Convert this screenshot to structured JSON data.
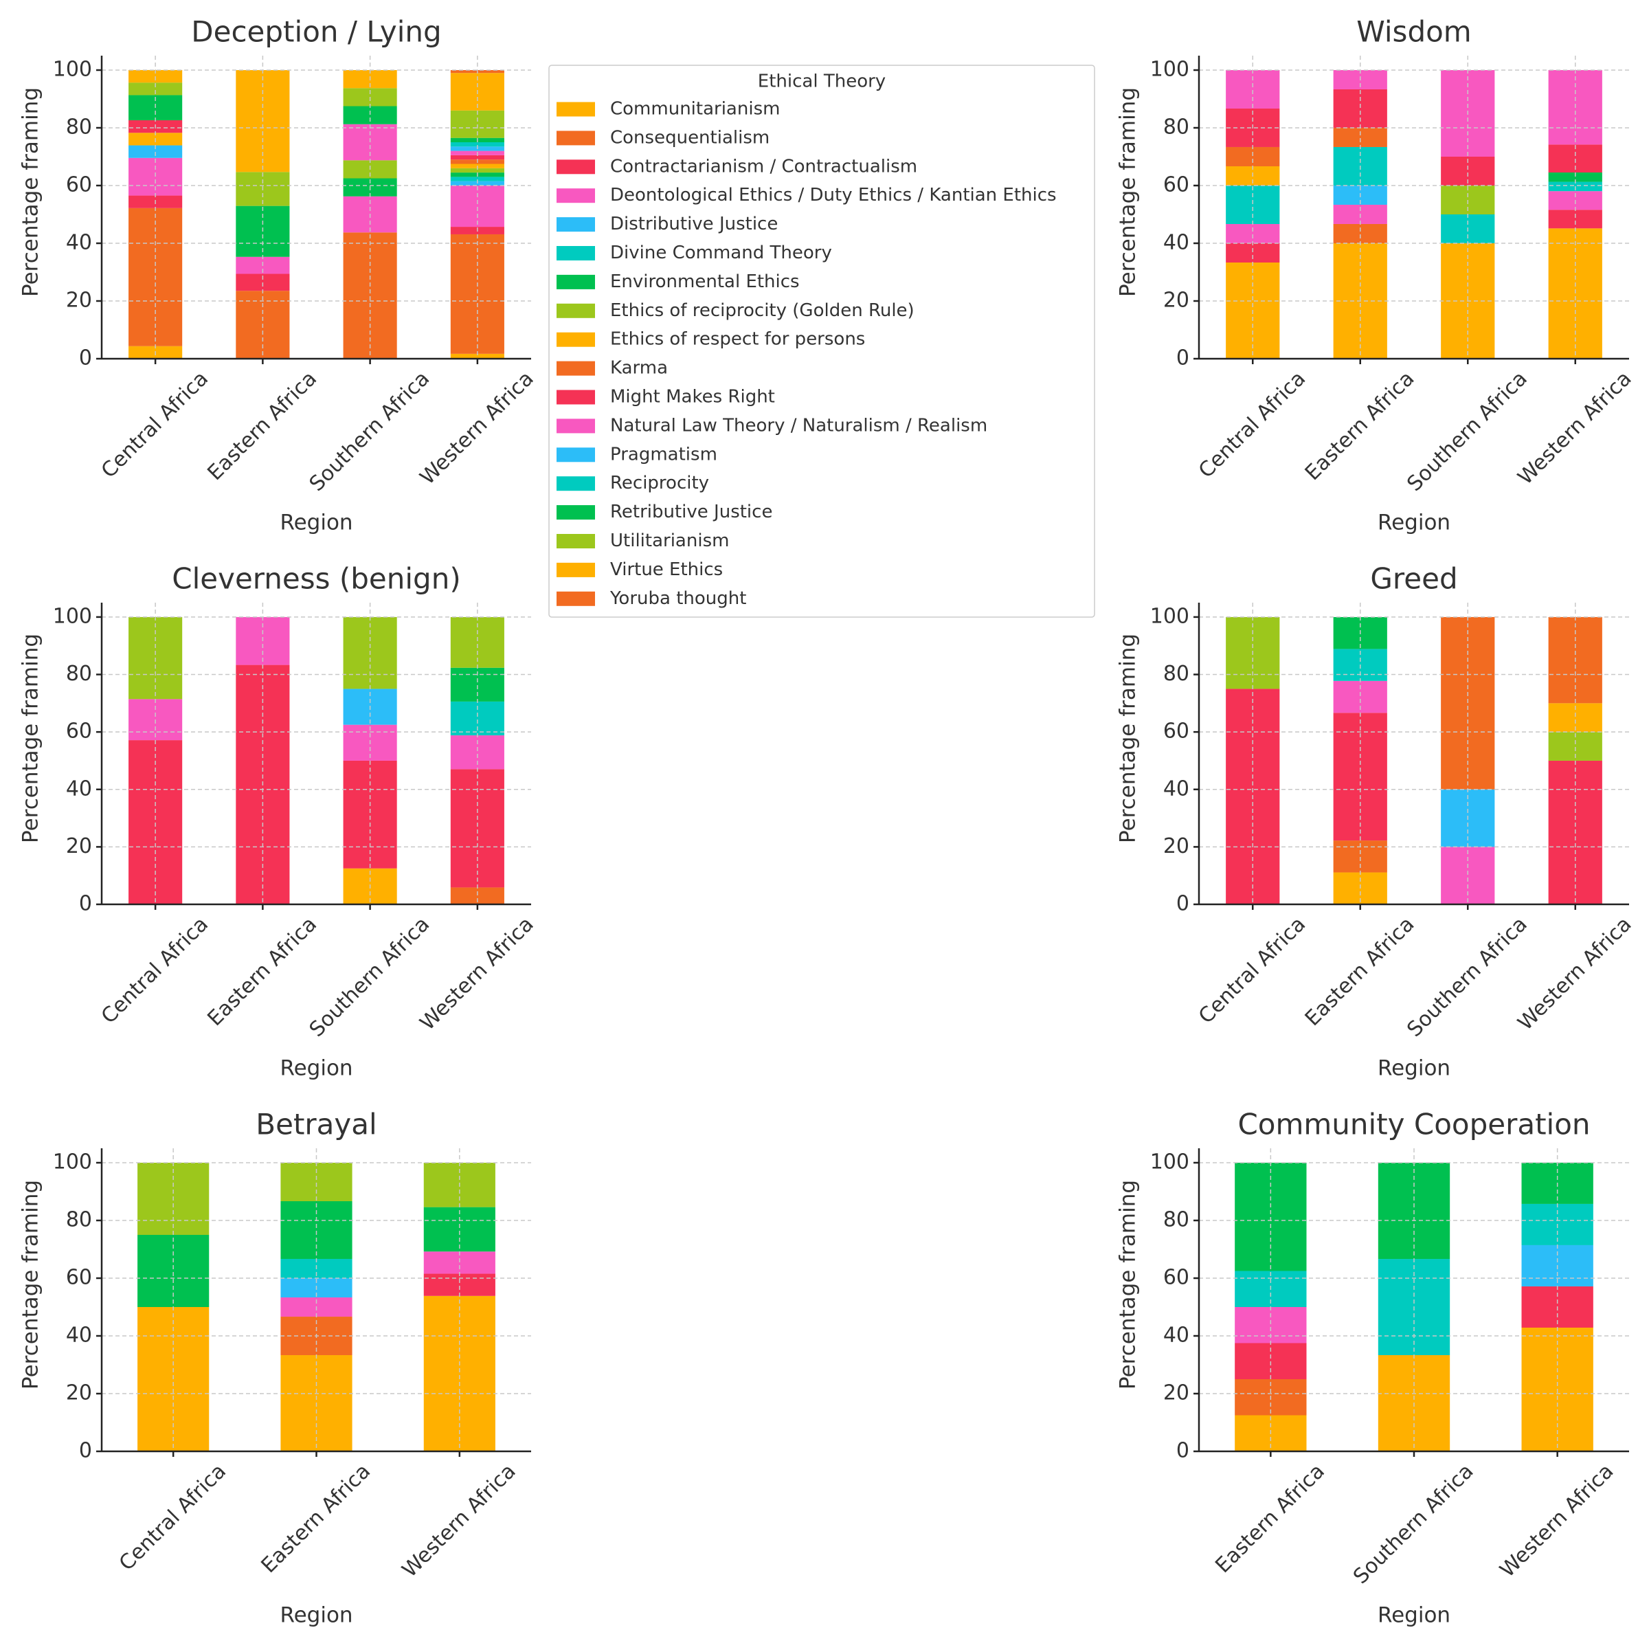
{
  "legend": {
    "title": "Ethical Theory",
    "position": "upper-center",
    "entries": [
      {
        "name": "Communitarianism",
        "color": "#FFB000"
      },
      {
        "name": "Consequentialism",
        "color": "#F26B21"
      },
      {
        "name": "Contractarianism / Contractualism",
        "color": "#F53255"
      },
      {
        "name": "Deontological Ethics / Duty Ethics / Kantian Ethics",
        "color": "#F858C0"
      },
      {
        "name": "Distributive Justice",
        "color": "#2CBDF8"
      },
      {
        "name": "Divine Command Theory",
        "color": "#00CBBF"
      },
      {
        "name": "Environmental Ethics",
        "color": "#00C050"
      },
      {
        "name": "Ethics of reciprocity (Golden Rule)",
        "color": "#9CC71C"
      },
      {
        "name": "Ethics of respect for persons",
        "color": "#FFB000"
      },
      {
        "name": "Karma",
        "color": "#F26B21"
      },
      {
        "name": "Might Makes Right",
        "color": "#F53255"
      },
      {
        "name": "Natural Law Theory / Naturalism / Realism",
        "color": "#F858C0"
      },
      {
        "name": "Pragmatism",
        "color": "#2CBDF8"
      },
      {
        "name": "Reciprocity",
        "color": "#00CBBF"
      },
      {
        "name": "Retributive Justice",
        "color": "#00C050"
      },
      {
        "name": "Utilitarianism",
        "color": "#9CC71C"
      },
      {
        "name": "Virtue Ethics",
        "color": "#FFB000"
      },
      {
        "name": "Yoruba thought",
        "color": "#F26B21"
      }
    ]
  },
  "chart_data": [
    {
      "type": "bar",
      "stacked": true,
      "grid": true,
      "title": "Deception / Lying",
      "x_label": "Region",
      "y_label": "Percentage framing",
      "categories": [
        "Central Africa",
        "Eastern Africa",
        "Southern Africa",
        "Western Africa"
      ],
      "ylim": [
        0,
        105
      ],
      "yticks": [
        0,
        20,
        40,
        60,
        80,
        100
      ],
      "series": [
        {
          "values": [
            4.35,
            0,
            0,
            1.7
          ]
        },
        {
          "values": [
            47.83,
            23.53,
            43.75,
            41.4
          ]
        },
        {
          "values": [
            4.35,
            5.88,
            0,
            2.6
          ]
        },
        {
          "values": [
            13.04,
            5.88,
            12.5,
            14.3
          ]
        },
        {
          "values": [
            4.35,
            0,
            0,
            1.5
          ]
        },
        {
          "values": [
            0,
            0,
            0,
            1.5
          ]
        },
        {
          "values": [
            0,
            17.65,
            6.25,
            1.5
          ]
        },
        {
          "values": [
            0,
            11.76,
            6.25,
            1.5
          ]
        },
        {
          "values": [
            4.35,
            35.29,
            0,
            1.5
          ]
        },
        {
          "values": [
            0,
            0,
            0,
            1.5
          ]
        },
        {
          "values": [
            4.35,
            0,
            0,
            1.5
          ]
        },
        {
          "values": [
            0,
            0,
            12.5,
            1.5
          ]
        },
        {
          "values": [
            0,
            0,
            0,
            1.5
          ]
        },
        {
          "values": [
            0,
            0,
            0,
            1.5
          ]
        },
        {
          "values": [
            8.7,
            0,
            6.25,
            1.5
          ]
        },
        {
          "values": [
            4.35,
            0,
            6.25,
            9.5
          ]
        },
        {
          "values": [
            4.35,
            0,
            6.25,
            13
          ]
        },
        {
          "values": [
            0,
            0,
            0,
            1
          ]
        }
      ]
    },
    {
      "type": "bar",
      "stacked": true,
      "grid": true,
      "title": "Wisdom",
      "x_label": "Region",
      "y_label": "Percentage framing",
      "categories": [
        "Central Africa",
        "Eastern Africa",
        "Southern Africa",
        "Western Africa"
      ],
      "ylim": [
        0,
        105
      ],
      "yticks": [
        0,
        20,
        40,
        60,
        80,
        100
      ],
      "series": [
        {
          "values": [
            33.33,
            40,
            40,
            45.16
          ]
        },
        {
          "values": [
            0,
            6.67,
            0,
            0
          ]
        },
        {
          "values": [
            6.67,
            0,
            0,
            6.45
          ]
        },
        {
          "values": [
            6.67,
            6.67,
            0,
            6.45
          ]
        },
        {
          "values": [
            0,
            6.67,
            0,
            0
          ]
        },
        {
          "values": [
            13.33,
            13.33,
            10,
            3.23
          ]
        },
        {
          "values": [
            0,
            0,
            0,
            3.23
          ]
        },
        {
          "values": [
            0,
            0,
            10,
            0
          ]
        },
        {
          "values": [
            6.67,
            0,
            0,
            0
          ]
        },
        {
          "values": [
            6.67,
            6.67,
            0,
            0
          ]
        },
        {
          "values": [
            13.33,
            13.33,
            10,
            9.68
          ]
        },
        {
          "values": [
            13.33,
            6.67,
            30,
            25.81
          ]
        },
        {
          "values": [
            0,
            0,
            0,
            0
          ]
        },
        {
          "values": [
            0,
            0,
            0,
            0
          ]
        },
        {
          "values": [
            0,
            0,
            0,
            0
          ]
        },
        {
          "values": [
            0,
            0,
            0,
            0
          ]
        },
        {
          "values": [
            0,
            0,
            0,
            0
          ]
        },
        {
          "values": [
            0,
            0,
            0,
            0
          ]
        }
      ]
    },
    {
      "type": "bar",
      "stacked": true,
      "grid": true,
      "title": "Cleverness (benign)",
      "x_label": "Region",
      "y_label": "Percentage framing",
      "categories": [
        "Central Africa",
        "Eastern Africa",
        "Southern Africa",
        "Western Africa"
      ],
      "ylim": [
        0,
        105
      ],
      "yticks": [
        0,
        20,
        40,
        60,
        80,
        100
      ],
      "series": [
        {
          "values": [
            0,
            0,
            12.5,
            0
          ]
        },
        {
          "values": [
            0,
            0,
            0,
            5.88
          ]
        },
        {
          "values": [
            57.14,
            83.33,
            37.5,
            41.18
          ]
        },
        {
          "values": [
            14.29,
            16.67,
            12.5,
            11.76
          ]
        },
        {
          "values": [
            0,
            0,
            12.5,
            0
          ]
        },
        {
          "values": [
            0,
            0,
            0,
            11.76
          ]
        },
        {
          "values": [
            0,
            0,
            0,
            11.76
          ]
        },
        {
          "values": [
            28.57,
            0,
            25,
            17.65
          ]
        },
        {
          "values": [
            0,
            0,
            0,
            0
          ]
        },
        {
          "values": [
            0,
            0,
            0,
            0
          ]
        },
        {
          "values": [
            0,
            0,
            0,
            0
          ]
        },
        {
          "values": [
            0,
            0,
            0,
            0
          ]
        },
        {
          "values": [
            0,
            0,
            0,
            0
          ]
        },
        {
          "values": [
            0,
            0,
            0,
            0
          ]
        },
        {
          "values": [
            0,
            0,
            0,
            0
          ]
        },
        {
          "values": [
            0,
            0,
            0,
            0
          ]
        },
        {
          "values": [
            0,
            0,
            0,
            0
          ]
        },
        {
          "values": [
            0,
            0,
            0,
            0
          ]
        }
      ]
    },
    {
      "type": "bar",
      "stacked": true,
      "grid": true,
      "title": "Greed",
      "x_label": "Region",
      "y_label": "Percentage framing",
      "categories": [
        "Central Africa",
        "Eastern Africa",
        "Southern Africa",
        "Western Africa"
      ],
      "ylim": [
        0,
        105
      ],
      "yticks": [
        0,
        20,
        40,
        60,
        80,
        100
      ],
      "series": [
        {
          "values": [
            0,
            11.11,
            0,
            0
          ]
        },
        {
          "values": [
            0,
            11.11,
            0,
            0
          ]
        },
        {
          "values": [
            75,
            44.44,
            0,
            50
          ]
        },
        {
          "values": [
            0,
            11.11,
            20,
            0
          ]
        },
        {
          "values": [
            0,
            0,
            20,
            0
          ]
        },
        {
          "values": [
            0,
            11.11,
            0,
            0
          ]
        },
        {
          "values": [
            0,
            11.11,
            0,
            0
          ]
        },
        {
          "values": [
            25,
            0,
            0,
            10
          ]
        },
        {
          "values": [
            0,
            0,
            0,
            10
          ]
        },
        {
          "values": [
            0,
            0,
            60,
            30
          ]
        },
        {
          "values": [
            0,
            0,
            0,
            0
          ]
        },
        {
          "values": [
            0,
            0,
            0,
            0
          ]
        },
        {
          "values": [
            0,
            0,
            0,
            0
          ]
        },
        {
          "values": [
            0,
            0,
            0,
            0
          ]
        },
        {
          "values": [
            0,
            0,
            0,
            0
          ]
        },
        {
          "values": [
            0,
            0,
            0,
            0
          ]
        },
        {
          "values": [
            0,
            0,
            0,
            0
          ]
        },
        {
          "values": [
            0,
            0,
            0,
            0
          ]
        }
      ]
    },
    {
      "type": "bar",
      "stacked": true,
      "grid": true,
      "title": "Betrayal",
      "x_label": "Region",
      "y_label": "Percentage framing",
      "categories": [
        "Central Africa",
        "Eastern Africa",
        "Western Africa"
      ],
      "ylim": [
        0,
        105
      ],
      "yticks": [
        0,
        20,
        40,
        60,
        80,
        100
      ],
      "series": [
        {
          "values": [
            50,
            33.33,
            53.85
          ]
        },
        {
          "values": [
            0,
            13.33,
            0
          ]
        },
        {
          "values": [
            0,
            0,
            7.69
          ]
        },
        {
          "values": [
            0,
            6.67,
            7.69
          ]
        },
        {
          "values": [
            0,
            6.67,
            0
          ]
        },
        {
          "values": [
            0,
            6.67,
            0
          ]
        },
        {
          "values": [
            25,
            20,
            15.38
          ]
        },
        {
          "values": [
            25,
            13.33,
            15.38
          ]
        },
        {
          "values": [
            0,
            0,
            0
          ]
        },
        {
          "values": [
            0,
            0,
            0
          ]
        },
        {
          "values": [
            0,
            0,
            0
          ]
        },
        {
          "values": [
            0,
            0,
            0
          ]
        },
        {
          "values": [
            0,
            0,
            0
          ]
        },
        {
          "values": [
            0,
            0,
            0
          ]
        },
        {
          "values": [
            0,
            0,
            0
          ]
        },
        {
          "values": [
            0,
            0,
            0
          ]
        },
        {
          "values": [
            0,
            0,
            0
          ]
        },
        {
          "values": [
            0,
            0,
            0
          ]
        }
      ]
    },
    {
      "type": "bar",
      "stacked": true,
      "grid": true,
      "title": "Community Cooperation",
      "x_label": "Region",
      "y_label": "Percentage framing",
      "categories": [
        "Eastern Africa",
        "Southern Africa",
        "Western Africa"
      ],
      "ylim": [
        0,
        105
      ],
      "yticks": [
        0,
        20,
        40,
        60,
        80,
        100
      ],
      "series": [
        {
          "values": [
            12.5,
            33.33,
            42.86
          ]
        },
        {
          "values": [
            12.5,
            0,
            0
          ]
        },
        {
          "values": [
            12.5,
            0,
            14.29
          ]
        },
        {
          "values": [
            12.5,
            0,
            0
          ]
        },
        {
          "values": [
            0,
            0,
            14.29
          ]
        },
        {
          "values": [
            12.5,
            33.33,
            14.29
          ]
        },
        {
          "values": [
            37.5,
            33.33,
            14.29
          ]
        },
        {
          "values": [
            0,
            0,
            0
          ]
        },
        {
          "values": [
            0,
            0,
            0
          ]
        },
        {
          "values": [
            0,
            0,
            0
          ]
        },
        {
          "values": [
            0,
            0,
            0
          ]
        },
        {
          "values": [
            0,
            0,
            0
          ]
        },
        {
          "values": [
            0,
            0,
            0
          ]
        },
        {
          "values": [
            0,
            0,
            0
          ]
        },
        {
          "values": [
            0,
            0,
            0
          ]
        },
        {
          "values": [
            0,
            0,
            0
          ]
        },
        {
          "values": [
            0,
            0,
            0
          ]
        },
        {
          "values": [
            0,
            0,
            0
          ]
        }
      ]
    }
  ]
}
